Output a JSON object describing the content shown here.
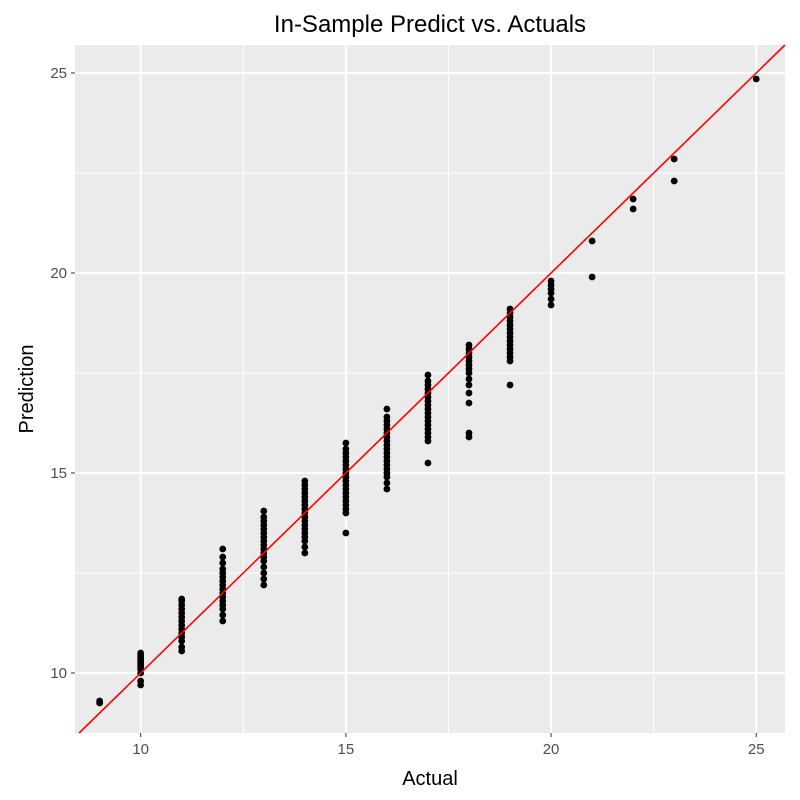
{
  "chart_data": {
    "type": "scatter",
    "title": "In-Sample Predict vs. Actuals",
    "xlabel": "Actual",
    "ylabel": "Prediction",
    "xlim": [
      8.4,
      25.7
    ],
    "ylim": [
      8.5,
      25.7
    ],
    "x_ticks": [
      10,
      15,
      20,
      25
    ],
    "y_ticks": [
      10,
      15,
      20,
      25
    ],
    "x_tick_labels": [
      "10",
      "15",
      "20",
      "25"
    ],
    "y_tick_labels": [
      "10",
      "15",
      "20",
      "25"
    ],
    "grid": true,
    "legend": "none",
    "colors": {
      "panel": "#ebebeb",
      "grid": "#ffffff",
      "points": "#000000",
      "reference_line": "#ff0000"
    },
    "reference_line": {
      "type": "identity",
      "slope": 1,
      "intercept": 0
    },
    "points": [
      [
        9,
        9.25
      ],
      [
        9,
        9.3
      ],
      [
        10,
        9.7
      ],
      [
        10,
        9.8
      ],
      [
        10,
        10.0
      ],
      [
        10,
        10.1
      ],
      [
        10,
        10.15
      ],
      [
        10,
        10.2
      ],
      [
        10,
        10.25
      ],
      [
        10,
        10.3
      ],
      [
        10,
        10.35
      ],
      [
        10,
        10.4
      ],
      [
        10,
        10.45
      ],
      [
        10,
        10.5
      ],
      [
        11,
        10.55
      ],
      [
        11,
        10.65
      ],
      [
        11,
        10.8
      ],
      [
        11,
        10.9
      ],
      [
        11,
        11.0
      ],
      [
        11,
        11.1
      ],
      [
        11,
        11.2
      ],
      [
        11,
        11.3
      ],
      [
        11,
        11.4
      ],
      [
        11,
        11.5
      ],
      [
        11,
        11.6
      ],
      [
        11,
        11.7
      ],
      [
        11,
        11.8
      ],
      [
        11,
        11.85
      ],
      [
        12,
        11.3
      ],
      [
        12,
        11.45
      ],
      [
        12,
        11.6
      ],
      [
        12,
        11.7
      ],
      [
        12,
        11.8
      ],
      [
        12,
        11.9
      ],
      [
        12,
        12.0
      ],
      [
        12,
        12.1
      ],
      [
        12,
        12.2
      ],
      [
        12,
        12.3
      ],
      [
        12,
        12.4
      ],
      [
        12,
        12.5
      ],
      [
        12,
        12.6
      ],
      [
        12,
        12.75
      ],
      [
        12,
        12.9
      ],
      [
        12,
        13.1
      ],
      [
        13,
        12.2
      ],
      [
        13,
        12.35
      ],
      [
        13,
        12.5
      ],
      [
        13,
        12.65
      ],
      [
        13,
        12.8
      ],
      [
        13,
        12.9
      ],
      [
        13,
        13.0
      ],
      [
        13,
        13.1
      ],
      [
        13,
        13.2
      ],
      [
        13,
        13.3
      ],
      [
        13,
        13.4
      ],
      [
        13,
        13.5
      ],
      [
        13,
        13.6
      ],
      [
        13,
        13.7
      ],
      [
        13,
        13.8
      ],
      [
        13,
        13.9
      ],
      [
        13,
        14.05
      ],
      [
        14,
        13.0
      ],
      [
        14,
        13.15
      ],
      [
        14,
        13.3
      ],
      [
        14,
        13.4
      ],
      [
        14,
        13.5
      ],
      [
        14,
        13.6
      ],
      [
        14,
        13.7
      ],
      [
        14,
        13.8
      ],
      [
        14,
        13.9
      ],
      [
        14,
        14.0
      ],
      [
        14,
        14.1
      ],
      [
        14,
        14.2
      ],
      [
        14,
        14.3
      ],
      [
        14,
        14.4
      ],
      [
        14,
        14.5
      ],
      [
        14,
        14.6
      ],
      [
        14,
        14.7
      ],
      [
        14,
        14.8
      ],
      [
        15,
        13.5
      ],
      [
        15,
        14.0
      ],
      [
        15,
        14.1
      ],
      [
        15,
        14.2
      ],
      [
        15,
        14.3
      ],
      [
        15,
        14.4
      ],
      [
        15,
        14.5
      ],
      [
        15,
        14.6
      ],
      [
        15,
        14.7
      ],
      [
        15,
        14.8
      ],
      [
        15,
        14.9
      ],
      [
        15,
        15.0
      ],
      [
        15,
        15.1
      ],
      [
        15,
        15.2
      ],
      [
        15,
        15.3
      ],
      [
        15,
        15.4
      ],
      [
        15,
        15.5
      ],
      [
        15,
        15.6
      ],
      [
        15,
        15.75
      ],
      [
        16,
        14.6
      ],
      [
        16,
        14.75
      ],
      [
        16,
        14.9
      ],
      [
        16,
        15.0
      ],
      [
        16,
        15.1
      ],
      [
        16,
        15.2
      ],
      [
        16,
        15.3
      ],
      [
        16,
        15.4
      ],
      [
        16,
        15.5
      ],
      [
        16,
        15.6
      ],
      [
        16,
        15.7
      ],
      [
        16,
        15.8
      ],
      [
        16,
        15.9
      ],
      [
        16,
        16.0
      ],
      [
        16,
        16.1
      ],
      [
        16,
        16.2
      ],
      [
        16,
        16.3
      ],
      [
        16,
        16.4
      ],
      [
        16,
        16.6
      ],
      [
        17,
        15.25
      ],
      [
        17,
        15.8
      ],
      [
        17,
        15.9
      ],
      [
        17,
        16.0
      ],
      [
        17,
        16.1
      ],
      [
        17,
        16.2
      ],
      [
        17,
        16.3
      ],
      [
        17,
        16.4
      ],
      [
        17,
        16.5
      ],
      [
        17,
        16.6
      ],
      [
        17,
        16.7
      ],
      [
        17,
        16.8
      ],
      [
        17,
        16.9
      ],
      [
        17,
        17.0
      ],
      [
        17,
        17.1
      ],
      [
        17,
        17.2
      ],
      [
        17,
        17.3
      ],
      [
        17,
        17.45
      ],
      [
        18,
        15.9
      ],
      [
        18,
        16.0
      ],
      [
        18,
        16.75
      ],
      [
        18,
        17.0
      ],
      [
        18,
        17.2
      ],
      [
        18,
        17.35
      ],
      [
        18,
        17.5
      ],
      [
        18,
        17.6
      ],
      [
        18,
        17.7
      ],
      [
        18,
        17.8
      ],
      [
        18,
        17.9
      ],
      [
        18,
        18.0
      ],
      [
        18,
        18.1
      ],
      [
        18,
        18.2
      ],
      [
        19,
        17.2
      ],
      [
        19,
        17.8
      ],
      [
        19,
        17.9
      ],
      [
        19,
        18.0
      ],
      [
        19,
        18.1
      ],
      [
        19,
        18.2
      ],
      [
        19,
        18.3
      ],
      [
        19,
        18.4
      ],
      [
        19,
        18.5
      ],
      [
        19,
        18.6
      ],
      [
        19,
        18.7
      ],
      [
        19,
        18.8
      ],
      [
        19,
        18.9
      ],
      [
        19,
        19.0
      ],
      [
        19,
        19.1
      ],
      [
        20,
        19.2
      ],
      [
        20,
        19.35
      ],
      [
        20,
        19.5
      ],
      [
        20,
        19.6
      ],
      [
        20,
        19.7
      ],
      [
        20,
        19.8
      ],
      [
        21,
        19.9
      ],
      [
        21,
        20.8
      ],
      [
        22,
        21.6
      ],
      [
        22,
        21.85
      ],
      [
        23,
        22.3
      ],
      [
        23,
        22.85
      ],
      [
        25,
        24.85
      ]
    ]
  }
}
